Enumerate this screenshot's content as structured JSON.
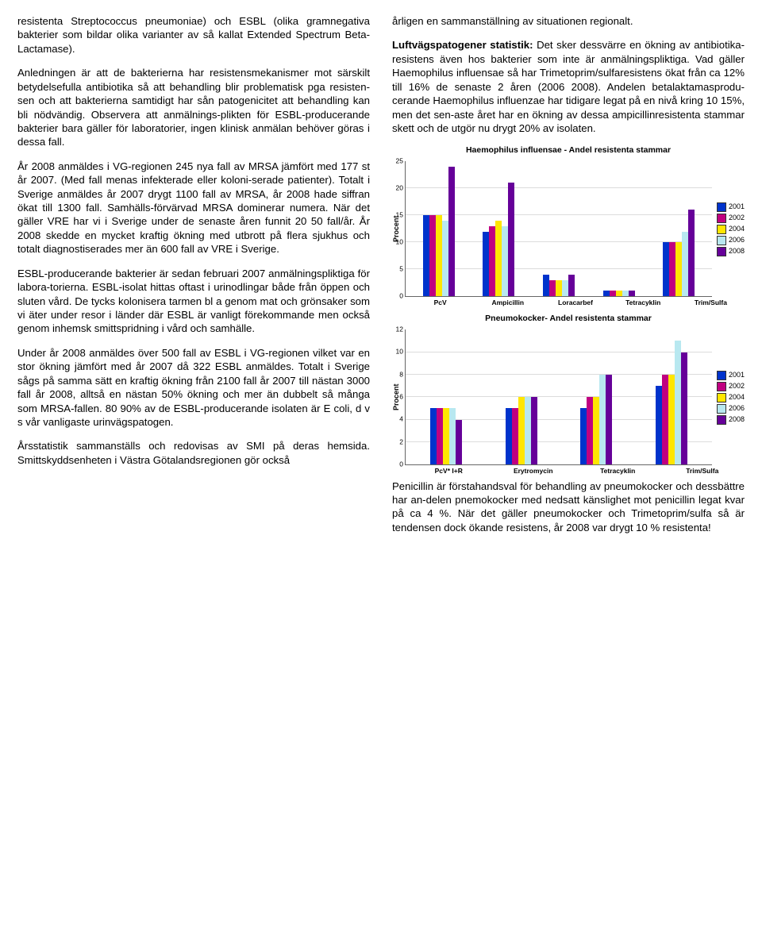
{
  "left": {
    "p1": "resistenta Streptococcus pneumoniae) och ESBL (olika gramnegativa bakterier som bildar olika varianter av så kallat Extended Spectrum Beta-Lactamase).",
    "p2": "Anledningen är att de bakterierna har resistensmekanismer mot särskilt betydelsefulla antibiotika så att behandling blir problematisk pga resisten-sen och att bakterierna samtidigt har sån patogenicitet att behandling kan bli nödvändig. Observera att anmälnings-plikten för ESBL-producerande bakterier bara gäller för laboratorier, ingen klinisk anmälan behöver göras i dessa fall.",
    "p3": "År 2008 anmäldes i VG-regionen 245 nya fall av MRSA jämfört med 177 st år 2007. (Med fall menas infekterade eller koloni-serade patienter). Totalt i Sverige anmäldes år 2007 drygt 1100 fall av MRSA, år 2008 hade siffran ökat till 1300 fall. Samhälls-förvärvad MRSA dominerar numera. När det gäller VRE har vi i Sverige under de senaste åren funnit 20 50 fall/år. År 2008 skedde en mycket kraftig ökning med utbrott på flera sjukhus och totalt diagnostiserades mer än 600 fall av VRE i Sverige.",
    "p4": "ESBL-producerande bakterier är sedan februari 2007 anmälningspliktiga för labora-torierna. ESBL-isolat hittas oftast i urinodlingar både från öppen och sluten vård. De tycks kolonisera tarmen bl a genom mat och grönsaker som vi äter under resor i länder där ESBL är vanligt förekommande men också genom inhemsk smittspridning i vård och samhälle.",
    "p5": "Under år 2008 anmäldes över 500 fall av ESBL i VG-regionen vilket var en stor ökning jämfört med år 2007 då 322 ESBL anmäldes. Totalt i Sverige sågs på samma sätt en kraftig ökning från 2100 fall år 2007 till nästan 3000 fall år 2008, alltså en nästan 50% ökning och mer än dubbelt så många som MRSA-fallen. 80 90% av de ESBL-producerande isolaten är E coli, d v s vår vanligaste urinvägspatogen.",
    "p6": "Årsstatistik sammanställs och redovisas av SMI på deras hemsida. Smittskyddsenheten i Västra Götalandsregionen gör också"
  },
  "right": {
    "p1": "årligen en sammanställning av situationen regionalt.",
    "subhead": "Luftvägspatogener   statistik:",
    "p2": "Det sker dessvärre en ökning av antibiotika-resistens även hos bakterier som inte är anmälningspliktiga. Vad gäller Haemophilus influensae så har Trimetoprim/sulfaresistens ökat från ca 12% till 16% de senaste 2 åren (2006 2008). Andelen betalaktamasprodu-cerande Haemophilus influenzae har tidigare legat på en nivå kring 10 15%, men det sen-aste året har en ökning av dessa ampicillinresistenta stammar skett och de utgör nu drygt 20% av isolaten.",
    "p3": "Penicillin är förstahandsval för behandling av pneumokocker och dessbättre har an-delen pnemokocker med nedsatt känslighet mot penicillin legat kvar på ca 4 %. När det gäller pneumokocker och Trimetoprim/sulfa så är tendensen dock ökande resistens, år 2008 var drygt 10 % resistenta!"
  },
  "legend_years": [
    "2001",
    "2002",
    "2004",
    "2006",
    "2008"
  ],
  "legend_colors": [
    "#0033cc",
    "#c00080",
    "#ffe600",
    "#b8e8f0",
    "#660099"
  ],
  "chart1": {
    "title": "Haemophilus influensae - Andel resistenta stammar",
    "ylabel": "Procent",
    "ymax": 25,
    "ytick_step": 5,
    "height": 170,
    "categories": [
      "PcV",
      "Ampicillin",
      "Loracarbef",
      "Tetracyklin",
      "Trim/Sulfa"
    ],
    "series_colors": [
      "#0033cc",
      "#c00080",
      "#ffe600",
      "#b8e8f0",
      "#660099"
    ],
    "values": [
      [
        15,
        15,
        15,
        14,
        24
      ],
      [
        12,
        13,
        14,
        13,
        21
      ],
      [
        4,
        3,
        3,
        3,
        4
      ],
      [
        1,
        1,
        1,
        1,
        1
      ],
      [
        10,
        10,
        10,
        12,
        16
      ]
    ]
  },
  "chart2": {
    "title": "Pneumokocker- Andel resistenta stammar",
    "ylabel": "Procent",
    "ymax": 12,
    "ytick_step": 2,
    "height": 170,
    "categories": [
      "PcV* I+R",
      "Erytromycin",
      "Tetracyklin",
      "Trim/Sulfa"
    ],
    "series_colors": [
      "#0033cc",
      "#c00080",
      "#ffe600",
      "#b8e8f0",
      "#660099"
    ],
    "values": [
      [
        5,
        5,
        5,
        5,
        4
      ],
      [
        5,
        5,
        6,
        6,
        6
      ],
      [
        5,
        6,
        6,
        8,
        8
      ],
      [
        7,
        8,
        8,
        11,
        10
      ]
    ]
  }
}
